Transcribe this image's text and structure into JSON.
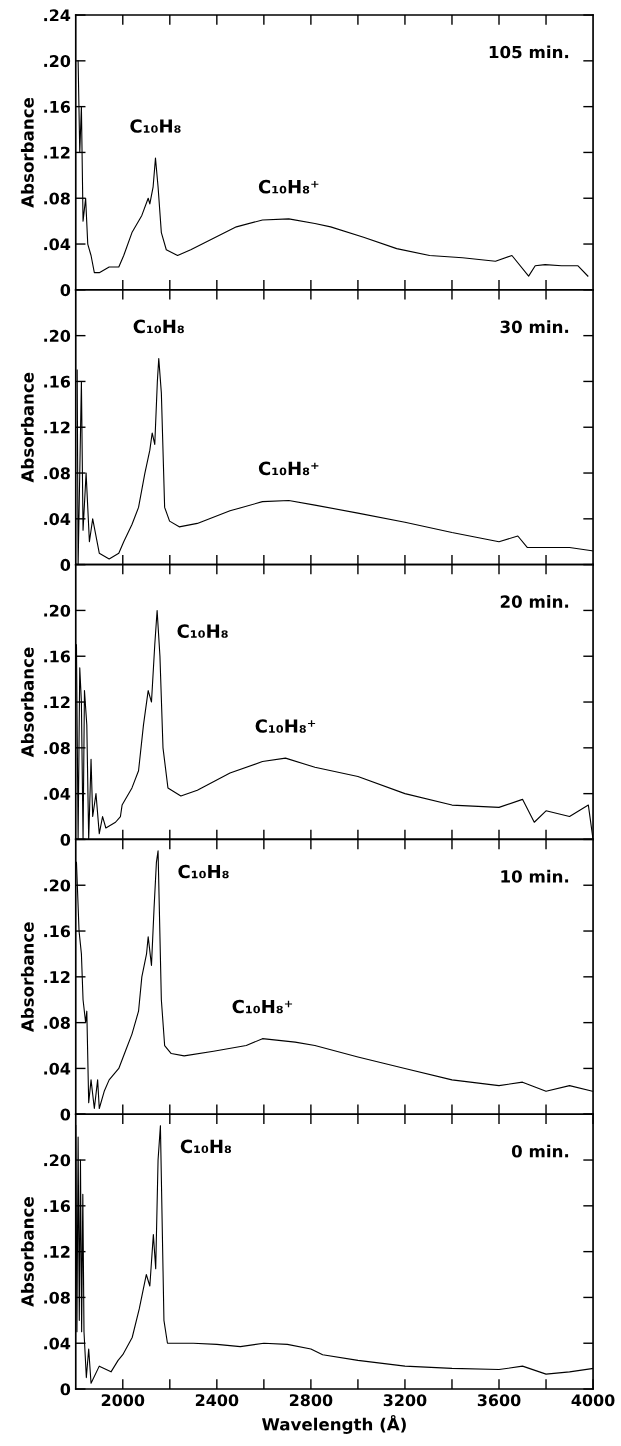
{
  "chart_data": [
    {
      "type": "line",
      "title": "105 min.",
      "ylabel": "Absorbance",
      "tick_labels": "y",
      "grid": false,
      "marker": "none",
      "line_style": "solid",
      "xlim": [
        1800,
        4000
      ],
      "xticks": [
        {
          "value": 2000,
          "label": null
        },
        {
          "value": 2200,
          "label": null
        },
        {
          "value": 2400,
          "label": null
        },
        {
          "value": 2600,
          "label": null
        },
        {
          "value": 2800,
          "label": null
        },
        {
          "value": 3000,
          "label": null
        },
        {
          "value": 3200,
          "label": null
        },
        {
          "value": 3400,
          "label": null
        },
        {
          "value": 3600,
          "label": null
        },
        {
          "value": 3800,
          "label": null
        }
      ],
      "ylim": [
        0,
        0.24
      ],
      "yticks": [
        {
          "value": 0,
          "label": "0"
        },
        {
          "value": 0.04,
          "label": ".04"
        },
        {
          "value": 0.08,
          "label": ".08"
        },
        {
          "value": 0.12,
          "label": ".12"
        },
        {
          "value": 0.16,
          "label": ".16"
        },
        {
          "value": 0.2,
          "label": ".20"
        },
        {
          "value": 0.24,
          "label": ".24"
        }
      ],
      "annotations": [
        {
          "text": "C₁₀H₈",
          "x": 2139,
          "y": 0.115
        },
        {
          "text": "C₁₀H₈⁺",
          "x": 2706,
          "y": 0.062
        }
      ],
      "series": [
        {
          "color": "#000000",
          "x": [
            1810,
            1817,
            1824,
            1831,
            1842,
            1851,
            1865,
            1879,
            1900,
            1942,
            1983,
            2004,
            2039,
            2081,
            2108,
            2115,
            2129,
            2139,
            2150,
            2164,
            2185,
            2233,
            2289,
            2386,
            2483,
            2594,
            2706,
            2817,
            2884,
            3024,
            3165,
            3305,
            3445,
            3585,
            3655,
            3726,
            3754,
            3796,
            3866,
            3936,
            3978
          ],
          "values": [
            0.2,
            0.12,
            0.16,
            0.06,
            0.08,
            0.04,
            0.03,
            0.015,
            0.015,
            0.02,
            0.02,
            0.03,
            0.05,
            0.065,
            0.08,
            0.075,
            0.09,
            0.115,
            0.09,
            0.05,
            0.035,
            0.03,
            0.035,
            0.045,
            0.055,
            0.061,
            0.062,
            0.058,
            0.055,
            0.046,
            0.036,
            0.03,
            0.028,
            0.025,
            0.03,
            0.012,
            0.021,
            0.022,
            0.021,
            0.021,
            0.012
          ]
        }
      ]
    },
    {
      "type": "line",
      "title": "30 min.",
      "ylabel": "Absorbance",
      "tick_labels": "y",
      "grid": false,
      "marker": "none",
      "line_style": "solid",
      "xlim": [
        1800,
        4000
      ],
      "xticks": [
        {
          "value": 2000,
          "label": null
        },
        {
          "value": 2200,
          "label": null
        },
        {
          "value": 2400,
          "label": null
        },
        {
          "value": 2600,
          "label": null
        },
        {
          "value": 2800,
          "label": null
        },
        {
          "value": 3000,
          "label": null
        },
        {
          "value": 3200,
          "label": null
        },
        {
          "value": 3400,
          "label": null
        },
        {
          "value": 3600,
          "label": null
        },
        {
          "value": 3800,
          "label": null
        }
      ],
      "ylim": [
        0,
        0.24
      ],
      "yticks": [
        {
          "value": 0,
          "label": "0"
        },
        {
          "value": 0.04,
          "label": ".04"
        },
        {
          "value": 0.08,
          "label": ".08"
        },
        {
          "value": 0.12,
          "label": ".12"
        },
        {
          "value": 0.16,
          "label": ".16"
        },
        {
          "value": 0.2,
          "label": ".20"
        },
        {
          "value": 0.24,
          "label": null
        }
      ],
      "annotations": [
        {
          "text": "C₁₀H₈",
          "x": 2153,
          "y": 0.18
        },
        {
          "text": "C₁₀H₈⁺",
          "x": 2706,
          "y": 0.056
        }
      ],
      "series": [
        {
          "color": "#000000",
          "x": [
            1806,
            1810,
            1824,
            1831,
            1844,
            1858,
            1872,
            1900,
            1942,
            1983,
            2004,
            2039,
            2067,
            2094,
            2115,
            2125,
            2136,
            2147,
            2153,
            2164,
            2178,
            2199,
            2240,
            2317,
            2456,
            2594,
            2706,
            2817,
            3000,
            3200,
            3400,
            3600,
            3680,
            3720,
            3800,
            3900,
            4000
          ],
          "values": [
            0.17,
            0.0,
            0.16,
            0.03,
            0.08,
            0.02,
            0.04,
            0.01,
            0.005,
            0.01,
            0.02,
            0.035,
            0.05,
            0.08,
            0.1,
            0.115,
            0.105,
            0.16,
            0.18,
            0.15,
            0.05,
            0.038,
            0.033,
            0.036,
            0.047,
            0.055,
            0.056,
            0.052,
            0.045,
            0.037,
            0.028,
            0.02,
            0.025,
            0.015,
            0.015,
            0.015,
            0.012
          ]
        }
      ]
    },
    {
      "type": "line",
      "title": "20 min.",
      "ylabel": "Absorbance",
      "tick_labels": "y",
      "grid": false,
      "marker": "none",
      "line_style": "solid",
      "xlim": [
        1800,
        4000
      ],
      "xticks": [
        {
          "value": 2000,
          "label": null
        },
        {
          "value": 2200,
          "label": null
        },
        {
          "value": 2400,
          "label": null
        },
        {
          "value": 2600,
          "label": null
        },
        {
          "value": 2800,
          "label": null
        },
        {
          "value": 3000,
          "label": null
        },
        {
          "value": 3200,
          "label": null
        },
        {
          "value": 3400,
          "label": null
        },
        {
          "value": 3600,
          "label": null
        },
        {
          "value": 3800,
          "label": null
        }
      ],
      "ylim": [
        0,
        0.24
      ],
      "yticks": [
        {
          "value": 0,
          "label": "0"
        },
        {
          "value": 0.04,
          "label": ".04"
        },
        {
          "value": 0.08,
          "label": ".08"
        },
        {
          "value": 0.12,
          "label": ".12"
        },
        {
          "value": 0.16,
          "label": ".16"
        },
        {
          "value": 0.2,
          "label": ".20"
        },
        {
          "value": 0.24,
          "label": null
        }
      ],
      "annotations": [
        {
          "text": "C₁₀H₈",
          "x": 2146,
          "y": 0.2
        },
        {
          "text": "C₁₀H₈⁺",
          "x": 2692,
          "y": 0.071
        }
      ],
      "series": [
        {
          "color": "#000000",
          "x": [
            1803,
            1810,
            1817,
            1824,
            1831,
            1837,
            1847,
            1855,
            1865,
            1872,
            1886,
            1900,
            1914,
            1928,
            1969,
            1990,
            1997,
            2039,
            2067,
            2088,
            2108,
            2122,
            2136,
            2146,
            2158,
            2171,
            2192,
            2247,
            2317,
            2456,
            2594,
            2692,
            2817,
            3000,
            3200,
            3400,
            3600,
            3700,
            3750,
            3800,
            3900,
            3980,
            4000
          ],
          "values": [
            0.17,
            0.0,
            0.15,
            0.12,
            0.0,
            0.13,
            0.1,
            0.0,
            0.07,
            0.02,
            0.04,
            0.005,
            0.02,
            0.01,
            0.015,
            0.02,
            0.03,
            0.045,
            0.06,
            0.1,
            0.13,
            0.12,
            0.17,
            0.2,
            0.16,
            0.08,
            0.045,
            0.038,
            0.043,
            0.058,
            0.068,
            0.071,
            0.063,
            0.055,
            0.04,
            0.03,
            0.028,
            0.035,
            0.015,
            0.025,
            0.02,
            0.03,
            0.0
          ]
        }
      ]
    },
    {
      "type": "line",
      "title": "10 min.",
      "ylabel": "Absorbance",
      "tick_labels": "y",
      "grid": false,
      "marker": "none",
      "line_style": "solid",
      "xlim": [
        1800,
        4000
      ],
      "xticks": [
        {
          "value": 2000,
          "label": null
        },
        {
          "value": 2200,
          "label": null
        },
        {
          "value": 2400,
          "label": null
        },
        {
          "value": 2600,
          "label": null
        },
        {
          "value": 2800,
          "label": null
        },
        {
          "value": 3000,
          "label": null
        },
        {
          "value": 3200,
          "label": null
        },
        {
          "value": 3400,
          "label": null
        },
        {
          "value": 3600,
          "label": null
        },
        {
          "value": 3800,
          "label": null
        }
      ],
      "ylim": [
        0,
        0.24
      ],
      "yticks": [
        {
          "value": 0,
          "label": "0"
        },
        {
          "value": 0.04,
          "label": ".04"
        },
        {
          "value": 0.08,
          "label": ".08"
        },
        {
          "value": 0.12,
          "label": ".12"
        },
        {
          "value": 0.16,
          "label": ".16"
        },
        {
          "value": 0.2,
          "label": ".20"
        },
        {
          "value": 0.24,
          "label": null
        }
      ],
      "annotations": [
        {
          "text": "C₁₀H₈",
          "x": 2150,
          "y": 0.23
        },
        {
          "text": "C₁₀H₈⁺",
          "x": 2594,
          "y": 0.066
        }
      ],
      "series": [
        {
          "color": "#000000",
          "x": [
            1803,
            1814,
            1824,
            1831,
            1842,
            1847,
            1855,
            1865,
            1879,
            1893,
            1900,
            1921,
            1942,
            1983,
            2011,
            2039,
            2067,
            2081,
            2101,
            2108,
            2122,
            2133,
            2143,
            2150,
            2164,
            2178,
            2206,
            2261,
            2386,
            2525,
            2594,
            2733,
            2817,
            3000,
            3200,
            3400,
            3600,
            3700,
            3800,
            3900,
            4000
          ],
          "values": [
            0.22,
            0.16,
            0.14,
            0.1,
            0.08,
            0.09,
            0.01,
            0.03,
            0.005,
            0.03,
            0.005,
            0.02,
            0.03,
            0.04,
            0.055,
            0.07,
            0.09,
            0.12,
            0.14,
            0.155,
            0.13,
            0.18,
            0.22,
            0.23,
            0.1,
            0.06,
            0.053,
            0.051,
            0.055,
            0.06,
            0.066,
            0.063,
            0.06,
            0.05,
            0.04,
            0.03,
            0.025,
            0.028,
            0.02,
            0.025,
            0.02
          ]
        }
      ]
    },
    {
      "type": "line",
      "title": "0 min.",
      "xlabel": "Wavelength (Å)",
      "ylabel": "Absorbance",
      "grid": false,
      "marker": "none",
      "line_style": "solid",
      "xlim": [
        1800,
        4000
      ],
      "xticks": [
        2000,
        {
          "value": 2200,
          "label": null
        },
        2400,
        {
          "value": 2600,
          "label": null
        },
        2800,
        {
          "value": 3000,
          "label": null
        },
        3200,
        {
          "value": 3400,
          "label": null
        },
        3600,
        {
          "value": 3800,
          "label": null
        },
        4000
      ],
      "ylim": [
        0,
        0.24
      ],
      "yticks": [
        {
          "value": 0,
          "label": "0"
        },
        {
          "value": 0.04,
          "label": ".04"
        },
        {
          "value": 0.08,
          "label": ".08"
        },
        {
          "value": 0.12,
          "label": ".12"
        },
        {
          "value": 0.16,
          "label": ".16"
        },
        {
          "value": 0.2,
          "label": ".20"
        },
        {
          "value": 0.24,
          "label": null
        }
      ],
      "annotations": [
        {
          "text": "C₁₀H₈",
          "x": 2160,
          "y": 0.23
        }
      ],
      "series": [
        {
          "color": "#000000",
          "x": [
            1800,
            1805,
            1810,
            1815,
            1820,
            1825,
            1830,
            1835,
            1845,
            1855,
            1865,
            1900,
            1950,
            1980,
            2000,
            2040,
            2070,
            2100,
            2115,
            2130,
            2140,
            2150,
            2160,
            2175,
            2190,
            2300,
            2400,
            2500,
            2600,
            2700,
            2800,
            2850,
            3000,
            3200,
            3400,
            3600,
            3700,
            3800,
            3900,
            4000
          ],
          "values": [
            0.23,
            0.05,
            0.22,
            0.06,
            0.2,
            0.05,
            0.17,
            0.05,
            0.01,
            0.035,
            0.005,
            0.02,
            0.015,
            0.025,
            0.03,
            0.045,
            0.07,
            0.1,
            0.09,
            0.135,
            0.105,
            0.2,
            0.23,
            0.06,
            0.04,
            0.04,
            0.039,
            0.037,
            0.04,
            0.039,
            0.035,
            0.03,
            0.025,
            0.02,
            0.018,
            0.017,
            0.02,
            0.013,
            0.015,
            0.018
          ]
        }
      ]
    }
  ]
}
